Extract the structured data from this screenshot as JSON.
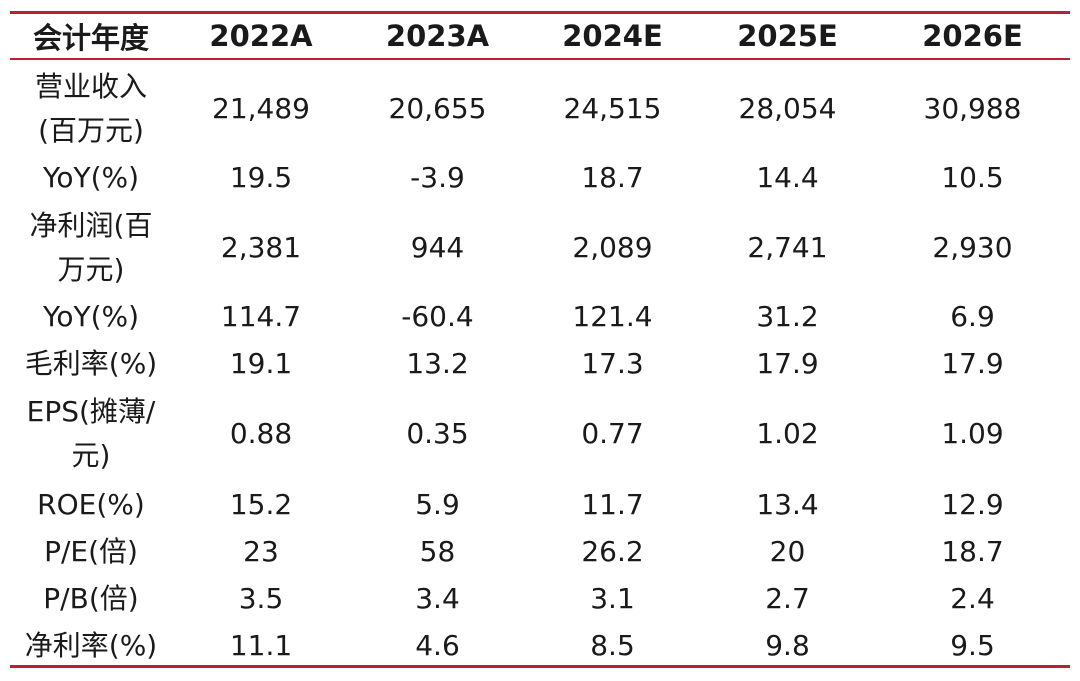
{
  "header": [
    "会计年度",
    "2022A",
    "2023A",
    "2024E",
    "2025E",
    "2026E"
  ],
  "rows": [
    {
      "label": "营业收入\n(百万元)",
      "values": [
        "21,489",
        "20,655",
        "24,515",
        "28,054",
        "30,988"
      ]
    },
    {
      "label": "YoY(%)",
      "values": [
        "19.5",
        "-3.9",
        "18.7",
        "14.4",
        "10.5"
      ]
    },
    {
      "label": "净利润(百\n万元)",
      "values": [
        "2,381",
        "944",
        "2,089",
        "2,741",
        "2,930"
      ]
    },
    {
      "label": "YoY(%)",
      "values": [
        "114.7",
        "-60.4",
        "121.4",
        "31.2",
        "6.9"
      ]
    },
    {
      "label": "毛利率(%)",
      "values": [
        "19.1",
        "13.2",
        "17.3",
        "17.9",
        "17.9"
      ]
    },
    {
      "label": "EPS(摊薄/\n元)",
      "values": [
        "0.88",
        "0.35",
        "0.77",
        "1.02",
        "1.09"
      ]
    },
    {
      "label": "ROE(%)",
      "values": [
        "15.2",
        "5.9",
        "11.7",
        "13.4",
        "12.9"
      ]
    },
    {
      "label": "P/E(倍)",
      "values": [
        "23",
        "58",
        "26.2",
        "20",
        "18.7"
      ]
    },
    {
      "label": "P/B(倍)",
      "values": [
        "3.5",
        "3.4",
        "3.1",
        "2.7",
        "2.4"
      ]
    },
    {
      "label": "净利率(%)",
      "values": [
        "11.1",
        "4.6",
        "8.5",
        "9.8",
        "9.5"
      ]
    }
  ],
  "colors": {
    "rule": "#b5242e",
    "text": "#1a1a1a",
    "background": "#ffffff"
  }
}
